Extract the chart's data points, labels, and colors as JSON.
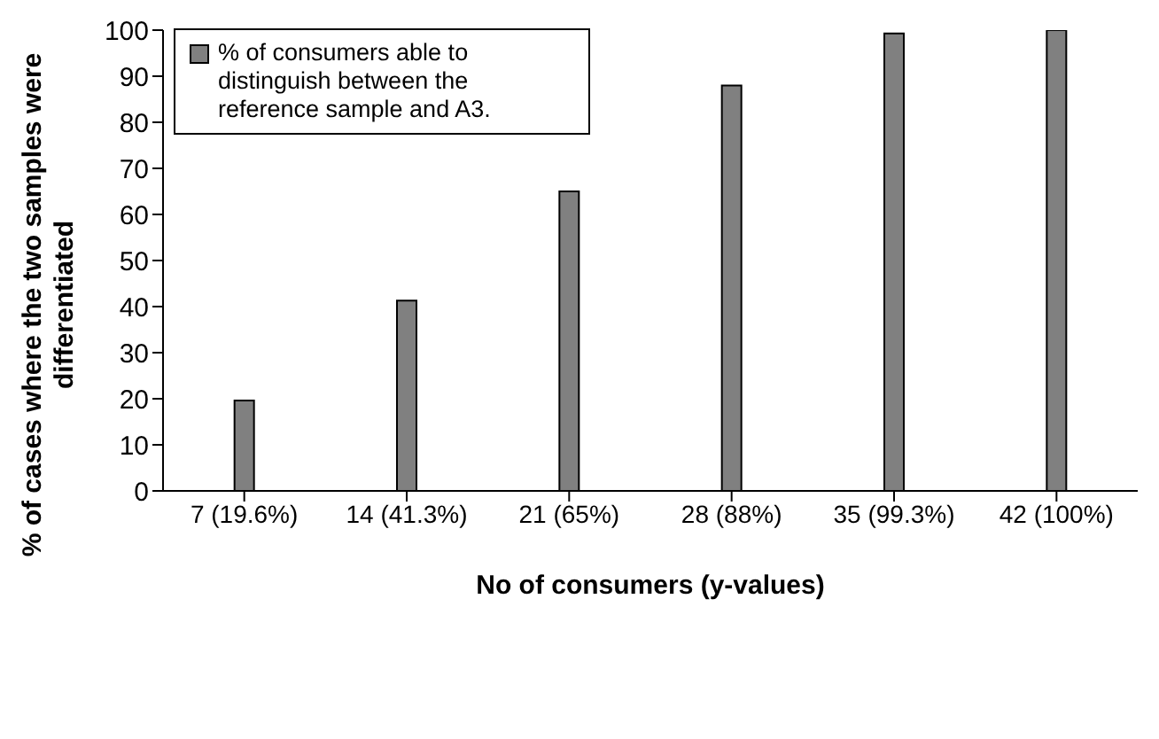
{
  "chart_data": {
    "type": "bar",
    "xlabel": "No of consumers (y-values)",
    "ylabel": "% of cases where the two samples were differentiated",
    "categories": [
      "7 (19.6%)",
      "14 (41.3%)",
      "21 (65%)",
      "28 (88%)",
      "35 (99.3%)",
      "42 (100%)"
    ],
    "series": [
      {
        "name": "% of consumers able to distinguish between the reference sample and A3.",
        "color": "#808080",
        "values": [
          19.6,
          41.3,
          65,
          88,
          99.3,
          100
        ]
      }
    ],
    "ylim": [
      0,
      100
    ],
    "yticks": [
      0,
      10,
      20,
      30,
      40,
      50,
      60,
      70,
      80,
      90,
      100
    ],
    "grid": false,
    "legend": "top left"
  }
}
